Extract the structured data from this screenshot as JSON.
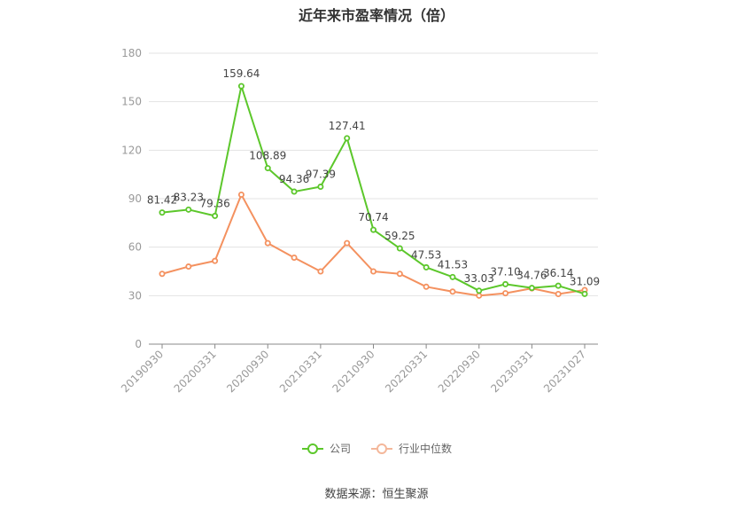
{
  "chart_data": {
    "type": "line",
    "title": "近年来市盈率情况（倍）",
    "x": [
      "20190930",
      "20191231",
      "20200331",
      "20200630",
      "20200930",
      "20201231",
      "20210331",
      "20210630",
      "20210930",
      "20211231",
      "20220331",
      "20220630",
      "20220930",
      "20221231",
      "20230331",
      "20230630",
      "20231027"
    ],
    "x_tick_labels": [
      "20190930",
      "20200331",
      "20200930",
      "20210331",
      "20210930",
      "20220331",
      "20220930",
      "20230331",
      "20231027"
    ],
    "y_ticks": [
      0,
      30,
      60,
      90,
      120,
      150,
      180
    ],
    "ylim": [
      0,
      180
    ],
    "series": [
      {
        "name": "公司",
        "color": "#5cc72b",
        "values": [
          81.42,
          83.23,
          79.36,
          159.64,
          108.89,
          94.36,
          97.39,
          127.41,
          70.74,
          59.25,
          47.53,
          41.53,
          33.03,
          37.1,
          34.76,
          36.14,
          31.09
        ],
        "labels": [
          "81.42",
          "83.23",
          "79.36",
          "159.64",
          "108.89",
          "94.36",
          "97.39",
          "127.41",
          "70.74",
          "59.25",
          "47.53",
          "41.53",
          "33.03",
          "37.10",
          "34.76",
          "36.14",
          "31.09"
        ]
      },
      {
        "name": "行业中位数",
        "color": "#f4915f",
        "values": [
          43.5,
          48,
          51.5,
          92.5,
          62.5,
          53.5,
          45,
          62.5,
          45,
          43.5,
          35.5,
          32.5,
          30,
          31.5,
          34.5,
          31,
          33.5
        ]
      }
    ],
    "grid": true,
    "legend_position": "bottom"
  },
  "source": "数据来源：恒生聚源"
}
